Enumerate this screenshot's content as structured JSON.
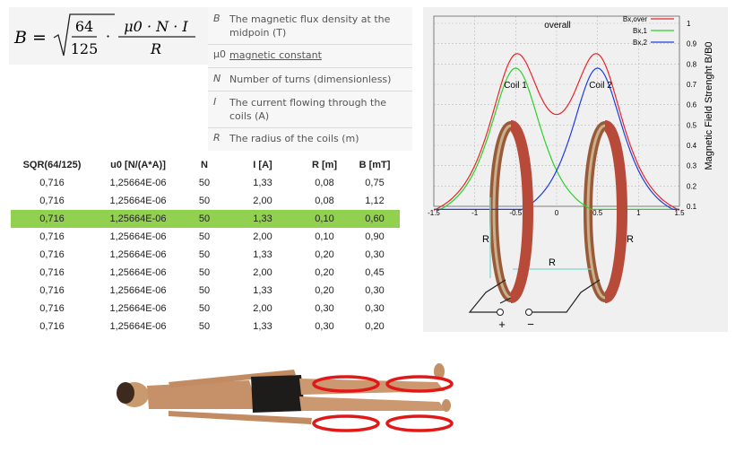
{
  "formula": {
    "lhs": "B =",
    "num": "64",
    "den": "125",
    "dot": "·",
    "frac_num": "μ0 · N · I",
    "frac_den": "R"
  },
  "legend": [
    {
      "symbol": "B",
      "text1": "The magnetic flux density at the",
      "text2": "midpoin (T)"
    },
    {
      "symbol": "μ0",
      "text1": "magnetic constant",
      "text2": ""
    },
    {
      "symbol": "N",
      "text1": "Number of turns (dimensionless)",
      "text2": ""
    },
    {
      "symbol": "I",
      "text1": "The current flowing through the",
      "text2": "coils (A)"
    },
    {
      "symbol": "R",
      "text1": "The radius of the coils (m)",
      "text2": ""
    }
  ],
  "table": {
    "headers": [
      "SQR(64/125)",
      "u0 [N/(A*A)]",
      "N",
      "I [A]",
      "R [m]",
      "B [mT]"
    ],
    "rows": [
      [
        "0,716",
        "1,25664E-06",
        "50",
        "1,33",
        "0,08",
        "0,75"
      ],
      [
        "0,716",
        "1,25664E-06",
        "50",
        "2,00",
        "0,08",
        "1,12"
      ],
      [
        "0,716",
        "1,25664E-06",
        "50",
        "1,33",
        "0,10",
        "0,60"
      ],
      [
        "0,716",
        "1,25664E-06",
        "50",
        "2,00",
        "0,10",
        "0,90"
      ],
      [
        "0,716",
        "1,25664E-06",
        "50",
        "1,33",
        "0,20",
        "0,30"
      ],
      [
        "0,716",
        "1,25664E-06",
        "50",
        "2,00",
        "0,20",
        "0,45"
      ],
      [
        "0,716",
        "1,25664E-06",
        "50",
        "1,33",
        "0,20",
        "0,30"
      ],
      [
        "0,716",
        "1,25664E-06",
        "50",
        "2,00",
        "0,30",
        "0,30"
      ],
      [
        "0,716",
        "1,25664E-06",
        "50",
        "1,33",
        "0,30",
        "0,20"
      ]
    ],
    "highlight_row": 2,
    "highlight_color": "#92d050"
  },
  "plot": {
    "x_ticks": [
      "-1.5",
      "-1",
      "-0.5",
      "0",
      "0.5",
      "1",
      "1.5"
    ],
    "y_ticks": [
      "0.1",
      "0.2",
      "0.3",
      "0.4",
      "0.5",
      "0.6",
      "0.7",
      "0.8",
      "0.9",
      "1"
    ],
    "y_label": "Magnetic Field Strenght B/B0",
    "label_overall": "overall",
    "label_coil1": "Coil 1",
    "label_coil2": "Coil 2",
    "legend": [
      {
        "name": "Bx,over",
        "color": "#e8262a"
      },
      {
        "name": "Bx,1",
        "color": "#2bd12b"
      },
      {
        "name": "Bx,2",
        "color": "#1f3ce0"
      }
    ],
    "dim_R_left": "R",
    "dim_R_right": "R",
    "dim_R_mid": "R",
    "plus": "+",
    "minus": "−"
  },
  "body_figure": {
    "marker_color": "#e01818",
    "marker_count": 4
  }
}
